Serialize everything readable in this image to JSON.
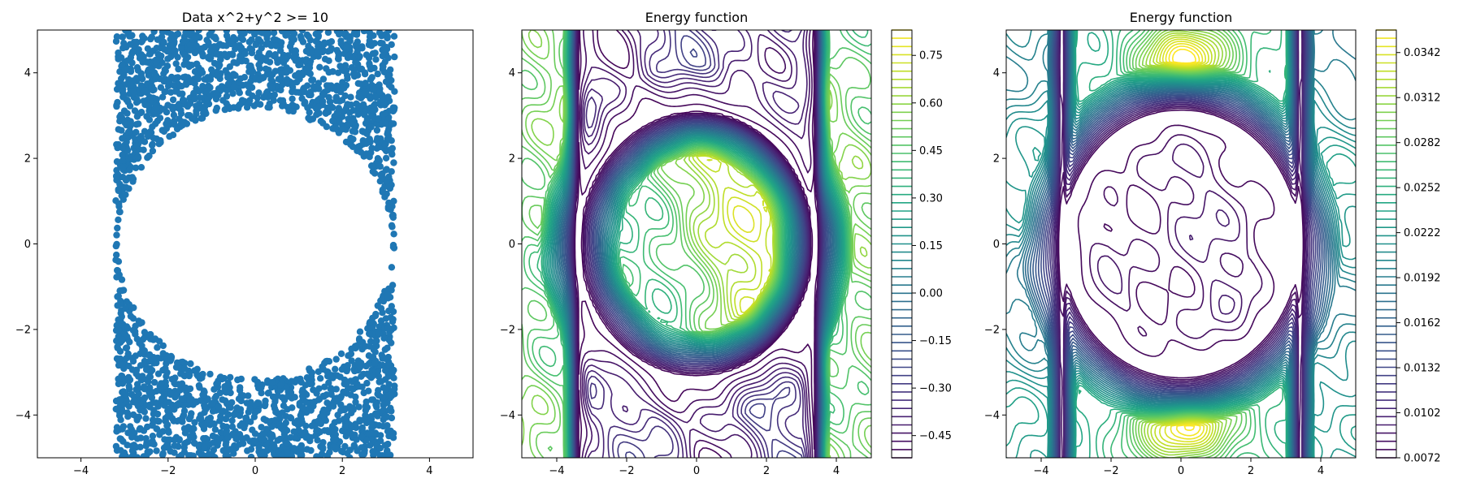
{
  "chart_data": [
    {
      "type": "scatter",
      "title": "Data x^2+y^2 >= 10",
      "xlim": [
        -5,
        5
      ],
      "ylim": [
        -5,
        5
      ],
      "xticks": [
        -4,
        -2,
        0,
        2,
        4
      ],
      "yticks": [
        -4,
        -2,
        0,
        2,
        4
      ],
      "xtick_labels": [
        "−4",
        "−2",
        "0",
        "2",
        "4"
      ],
      "ytick_labels": [
        "−4",
        "−2",
        "0",
        "2",
        "4"
      ],
      "series": [
        {
          "color": "#1f77b4",
          "description_of_region": "uniform points with |x| <= 3.2 and x^2+y^2 >= 10",
          "x_range": [
            -3.2,
            3.2
          ],
          "y_range": [
            -5,
            5
          ],
          "radius": 3.162
        }
      ],
      "grid": false
    },
    {
      "type": "contour",
      "title": "Energy function",
      "xlim": [
        -5,
        5
      ],
      "ylim": [
        -5,
        5
      ],
      "xticks": [
        -4,
        -2,
        0,
        2,
        4
      ],
      "yticks": [
        -4,
        -2,
        0,
        2,
        4
      ],
      "xtick_labels": [
        "−4",
        "−2",
        "0",
        "2",
        "4"
      ],
      "ytick_labels": [
        "−4",
        "−2",
        "0",
        "2",
        "4"
      ],
      "colormap": "viridis",
      "levels_min": -0.52,
      "levels_max": 0.83,
      "colorbar_ticks": [
        0.75,
        0.6,
        0.45,
        0.3,
        0.15,
        0.0,
        -0.15,
        -0.3,
        -0.45
      ],
      "colorbar_tick_labels": [
        "0.75",
        "0.60",
        "0.45",
        "0.30",
        "0.15",
        "0.00",
        "−0.15",
        "−0.30",
        "−0.45"
      ],
      "grid": false
    },
    {
      "type": "contour",
      "title": "Energy function",
      "xlim": [
        -5,
        5
      ],
      "ylim": [
        -5,
        5
      ],
      "xticks": [
        -4,
        -2,
        0,
        2,
        4
      ],
      "yticks": [
        -4,
        -2,
        0,
        2,
        4
      ],
      "xtick_labels": [
        "−4",
        "−2",
        "0",
        "2",
        "4"
      ],
      "ytick_labels": [
        "−4",
        "−2",
        "0",
        "2",
        "4"
      ],
      "colormap": "viridis",
      "levels_min": 0.0072,
      "levels_max": 0.0357,
      "colorbar_ticks": [
        0.0342,
        0.0312,
        0.0282,
        0.0252,
        0.0222,
        0.0192,
        0.0162,
        0.0132,
        0.0102,
        0.0072
      ],
      "colorbar_tick_labels": [
        "0.0342",
        "0.0312",
        "0.0282",
        "0.0252",
        "0.0222",
        "0.0192",
        "0.0162",
        "0.0132",
        "0.0102",
        "0.0072"
      ],
      "grid": false
    }
  ]
}
